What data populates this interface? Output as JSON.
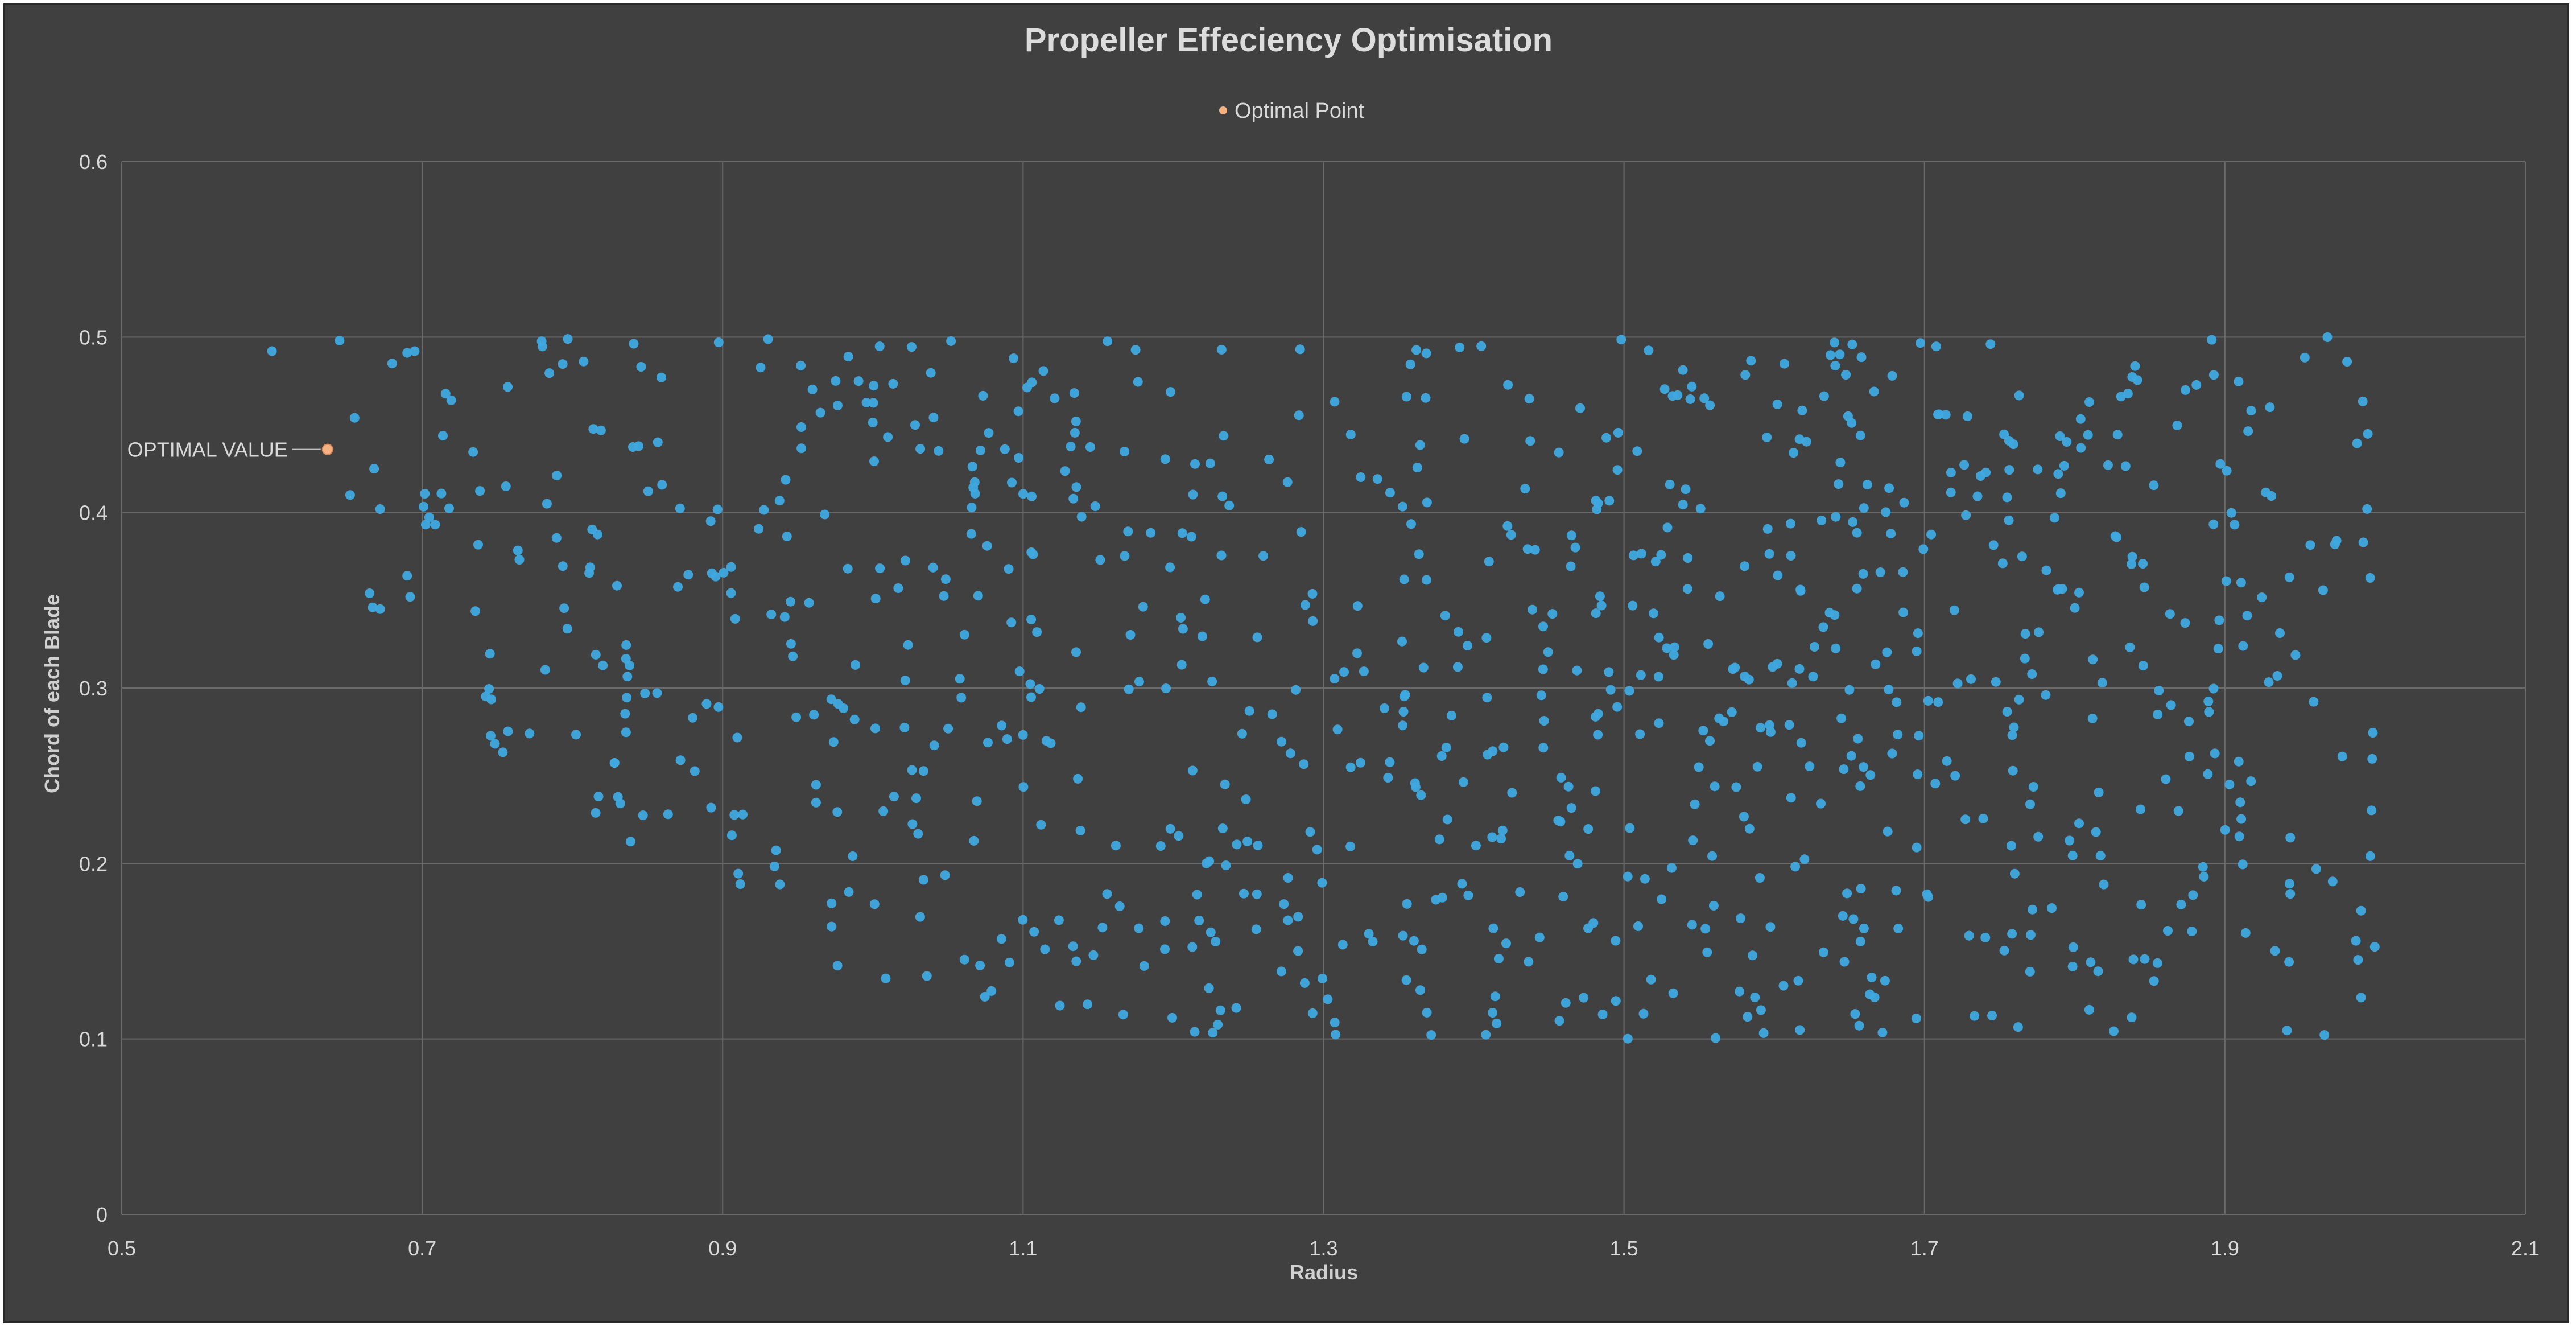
{
  "chart_data": {
    "type": "scatter",
    "title": "Propeller Effeciency Optimisation",
    "xlabel": "Radius",
    "ylabel": "Chord of each Blade",
    "xlim": [
      0.5,
      2.1
    ],
    "ylim": [
      0,
      0.6
    ],
    "x_ticks": [
      0.5,
      0.7,
      0.9,
      1.1,
      1.3,
      1.5,
      1.7,
      1.9,
      2.1
    ],
    "y_ticks": [
      0,
      0.1,
      0.2,
      0.3,
      0.4,
      0.5,
      0.6
    ],
    "x_tick_labels": [
      "0.5",
      "0.7",
      "0.9",
      "1.1",
      "1.3",
      "1.5",
      "1.7",
      "1.9",
      "2.1"
    ],
    "y_tick_labels": [
      "0",
      "0.1",
      "0.2",
      "0.3",
      "0.4",
      "0.5",
      "0.6"
    ],
    "grid": true,
    "legend": {
      "position": "top-center",
      "entries": [
        {
          "label": "Optimal Point",
          "color": "#f4b183"
        }
      ]
    },
    "series": [
      {
        "color": "#3fa9e0",
        "random_points": {
          "count": 900,
          "x_range": [
            0.6,
            2.0
          ],
          "y_range": [
            0.1,
            0.5
          ],
          "seed": 7,
          "lower_bound_left": [
            [
              0.6,
              0.4
            ],
            [
              0.7,
              0.3
            ],
            [
              0.8,
              0.23
            ],
            [
              0.9,
              0.18
            ],
            [
              1.0,
              0.13
            ],
            [
              1.1,
              0.12
            ],
            [
              1.2,
              0.1
            ],
            [
              2.0,
              0.1
            ]
          ],
          "fixed_points": [
            [
              0.6,
              0.492
            ],
            [
              0.645,
              0.498
            ],
            [
              0.655,
              0.454
            ],
            [
              0.652,
              0.41
            ],
            [
              0.668,
              0.425
            ],
            [
              0.672,
              0.402
            ],
            [
              0.665,
              0.354
            ],
            [
              0.667,
              0.346
            ],
            [
              0.672,
              0.345
            ],
            [
              0.68,
              0.485
            ],
            [
              0.69,
              0.491
            ],
            [
              0.695,
              0.492
            ],
            [
              0.69,
              0.364
            ],
            [
              0.692,
              0.352
            ]
          ]
        }
      },
      {
        "name": "Optimal Point",
        "color": "#f4b183",
        "points": [
          {
            "x": 0.637,
            "y": 0.436
          }
        ]
      }
    ],
    "annotations": [
      {
        "text": "OPTIMAL VALUE",
        "x": 0.637,
        "y": 0.436
      }
    ]
  }
}
